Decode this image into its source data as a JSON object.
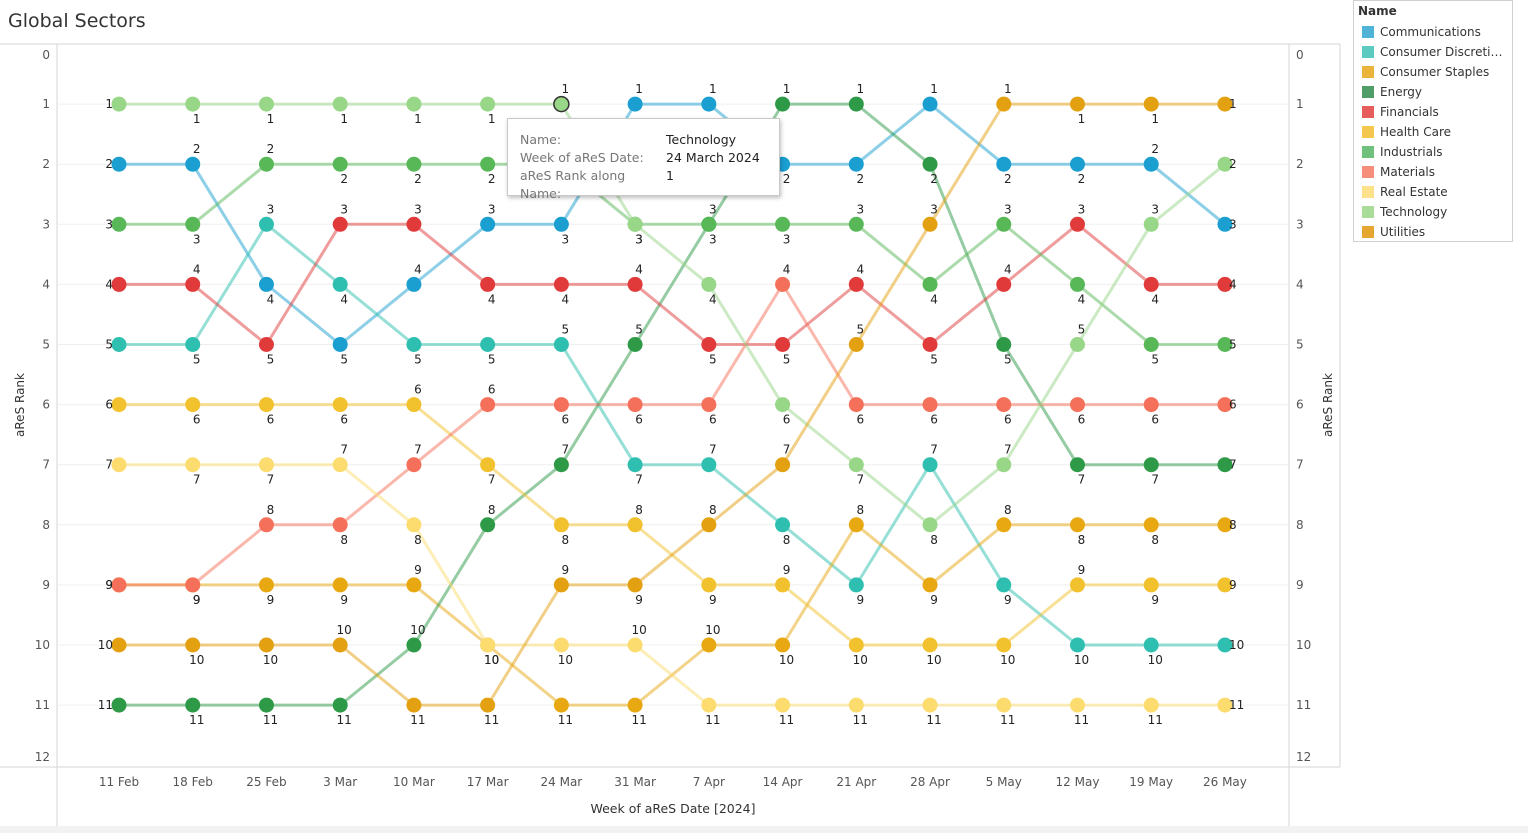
{
  "page_title": "Global Sectors",
  "chart_data": {
    "type": "line",
    "title": "Global Sectors",
    "xlabel": "Week of aReS Date [2024]",
    "ylabel": "aReS Rank",
    "ylabel_right": "aReS Rank",
    "ylim": [
      0,
      12
    ],
    "y_reversed": true,
    "y_ticks": [
      "0",
      "1",
      "2",
      "3",
      "4",
      "5",
      "6",
      "7",
      "8",
      "9",
      "10",
      "11",
      "12"
    ],
    "categories": [
      "11 Feb",
      "18 Feb",
      "25 Feb",
      "3 Mar",
      "10 Mar",
      "17 Mar",
      "24 Mar",
      "31 Mar",
      "7 Apr",
      "14 Apr",
      "21 Apr",
      "28 Apr",
      "5 May",
      "12 May",
      "19 May",
      "26 May"
    ],
    "grid": true,
    "legend_position": "right",
    "series": [
      {
        "name": "Communications",
        "color": "#1a9fd0",
        "values": [
          2,
          2,
          4,
          5,
          4,
          3,
          3,
          1,
          1,
          2,
          2,
          1,
          2,
          2,
          2,
          3
        ]
      },
      {
        "name": "Consumer Discretion...",
        "color": "#2ebfb0",
        "values": [
          5,
          5,
          3,
          4,
          5,
          5,
          5,
          7,
          7,
          8,
          9,
          7,
          9,
          10,
          10,
          10
        ]
      },
      {
        "name": "Consumer Staples",
        "color": "#e8a811",
        "values": [
          9,
          9,
          9,
          9,
          9,
          10,
          11,
          11,
          10,
          10,
          8,
          9,
          8,
          8,
          8,
          8
        ]
      },
      {
        "name": "Energy",
        "color": "#2e9a48",
        "values": [
          11,
          11,
          11,
          11,
          10,
          8,
          7,
          5,
          3,
          1,
          1,
          2,
          5,
          7,
          7,
          7
        ]
      },
      {
        "name": "Financials",
        "color": "#e03a3a",
        "values": [
          4,
          4,
          5,
          3,
          3,
          4,
          4,
          4,
          5,
          5,
          4,
          5,
          4,
          3,
          4,
          4
        ]
      },
      {
        "name": "Health Care",
        "color": "#f2c12e",
        "values": [
          6,
          6,
          6,
          6,
          6,
          7,
          8,
          8,
          9,
          9,
          10,
          10,
          10,
          9,
          9,
          9
        ]
      },
      {
        "name": "Industrials",
        "color": "#58b858",
        "values": [
          3,
          3,
          2,
          2,
          2,
          2,
          2,
          3,
          3,
          3,
          3,
          4,
          3,
          4,
          5,
          5
        ]
      },
      {
        "name": "Materials",
        "color": "#f5705a",
        "values": [
          9,
          9,
          8,
          8,
          7,
          6,
          6,
          6,
          6,
          4,
          6,
          6,
          6,
          6,
          6,
          6
        ]
      },
      {
        "name": "Real Estate",
        "color": "#fcdc6e",
        "values": [
          7,
          7,
          7,
          7,
          8,
          10,
          10,
          10,
          11,
          11,
          11,
          11,
          11,
          11,
          11,
          11
        ]
      },
      {
        "name": "Technology",
        "color": "#98d688",
        "values": [
          1,
          1,
          1,
          1,
          1,
          1,
          1,
          3,
          4,
          6,
          7,
          8,
          7,
          5,
          3,
          2
        ]
      },
      {
        "name": "Utilities",
        "color": "#e3a010",
        "values": [
          10,
          10,
          10,
          10,
          11,
          11,
          9,
          9,
          8,
          7,
          5,
          3,
          1,
          1,
          1,
          1
        ]
      }
    ]
  },
  "legend": {
    "title": "Name",
    "items": [
      "Communications",
      "Consumer Discretion...",
      "Consumer Staples",
      "Energy",
      "Financials",
      "Health Care",
      "Industrials",
      "Materials",
      "Real Estate",
      "Technology",
      "Utilities"
    ],
    "colors": [
      "#4fb3d8",
      "#5ccabf",
      "#ebb33b",
      "#4f9e6a",
      "#e55d5d",
      "#f4c84e",
      "#6ec07a",
      "#f68e7c",
      "#fde08a",
      "#a8dc98",
      "#e5a632"
    ]
  },
  "tooltip": {
    "rows": [
      {
        "key": "Name:",
        "value": "Technology"
      },
      {
        "key": "Week of aReS Date:",
        "value": "24 March 2024"
      },
      {
        "key": "aReS Rank along Name:",
        "value": "1"
      }
    ]
  }
}
